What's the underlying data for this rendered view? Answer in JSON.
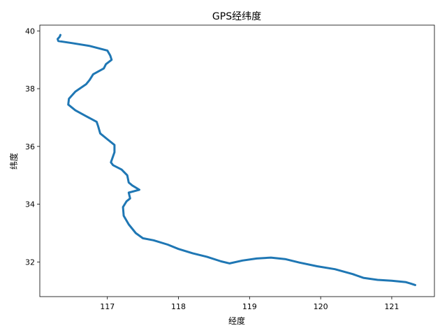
{
  "chart_data": {
    "type": "line",
    "title": "GPS经纬度",
    "xlabel": "经度",
    "ylabel": "纬度",
    "xlim": [
      116.05,
      121.6
    ],
    "ylim": [
      30.8,
      40.2
    ],
    "xticks": [
      117,
      118,
      119,
      120,
      121
    ],
    "yticks": [
      32,
      34,
      36,
      38,
      40
    ],
    "grid": false,
    "legend": "none",
    "series": [
      {
        "color": "#1f77b4",
        "x": [
          116.34,
          116.33,
          116.3,
          116.31,
          116.5,
          116.75,
          117.0,
          117.04,
          117.06,
          116.98,
          116.95,
          116.8,
          116.75,
          116.7,
          116.55,
          116.46,
          116.45,
          116.55,
          116.7,
          116.85,
          116.87,
          116.9,
          117.0,
          117.1,
          117.1,
          117.05,
          117.08,
          117.2,
          117.28,
          117.3,
          117.35,
          117.45,
          117.3,
          117.32,
          117.27,
          117.22,
          117.23,
          117.3,
          117.4,
          117.5,
          117.65,
          117.85,
          118.0,
          118.2,
          118.4,
          118.6,
          118.72,
          118.9,
          119.1,
          119.3,
          119.5,
          119.7,
          119.95,
          120.2,
          120.45,
          120.6,
          120.8,
          121.0,
          121.2,
          121.27,
          121.33
        ],
        "y": [
          39.86,
          39.8,
          39.72,
          39.65,
          39.58,
          39.48,
          39.32,
          39.15,
          39.0,
          38.85,
          38.7,
          38.5,
          38.3,
          38.15,
          37.9,
          37.65,
          37.45,
          37.25,
          37.05,
          36.85,
          36.7,
          36.45,
          36.25,
          36.05,
          35.8,
          35.45,
          35.35,
          35.2,
          35.0,
          34.75,
          34.65,
          34.5,
          34.4,
          34.2,
          34.1,
          33.9,
          33.6,
          33.3,
          33.0,
          32.82,
          32.75,
          32.6,
          32.45,
          32.3,
          32.18,
          32.02,
          31.95,
          32.05,
          32.12,
          32.15,
          32.1,
          31.98,
          31.85,
          31.75,
          31.58,
          31.45,
          31.38,
          31.35,
          31.3,
          31.25,
          31.2
        ]
      }
    ]
  }
}
